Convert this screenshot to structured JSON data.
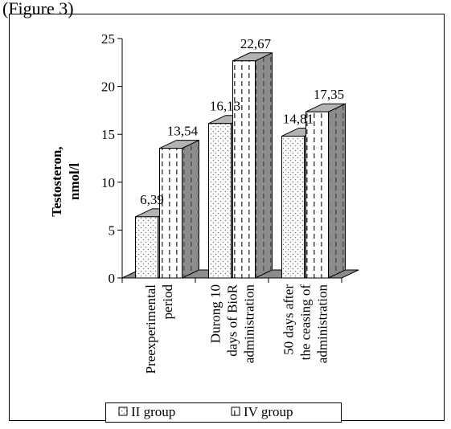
{
  "caption_fragment": "(Figure 3)",
  "chart_data": {
    "type": "bar",
    "title": "",
    "ylabel": "Testosteron, nmol/l",
    "xlabel": "",
    "ylim": [
      0,
      25
    ],
    "yticks": [
      0,
      5,
      10,
      15,
      20,
      25
    ],
    "categories": [
      [
        "Preexperimental",
        "period"
      ],
      [
        "Durong  10",
        "days of BioR",
        "administration"
      ],
      [
        "50 days after",
        "the ceasing of",
        "administration"
      ]
    ],
    "series": [
      {
        "name": "II group",
        "values": [
          6.39,
          16.13,
          14.81
        ],
        "labels": [
          "6,39",
          "16,13",
          "14,81"
        ],
        "pattern": "dots"
      },
      {
        "name": "IV group",
        "values": [
          13.54,
          22.67,
          17.35
        ],
        "labels": [
          "13,54",
          "22,67",
          "17,35"
        ],
        "pattern": "dashes"
      }
    ],
    "grid": false,
    "legend_position": "bottom",
    "style": "3d-clustered-column",
    "colors": {
      "bar_fill": "#ffffff",
      "bar_side": "#8c8c8c",
      "bar_top": "#b3b3b3",
      "floor": "#8c8c8c",
      "pattern": "#777777",
      "axis": "#000000",
      "border": "#000000"
    }
  }
}
